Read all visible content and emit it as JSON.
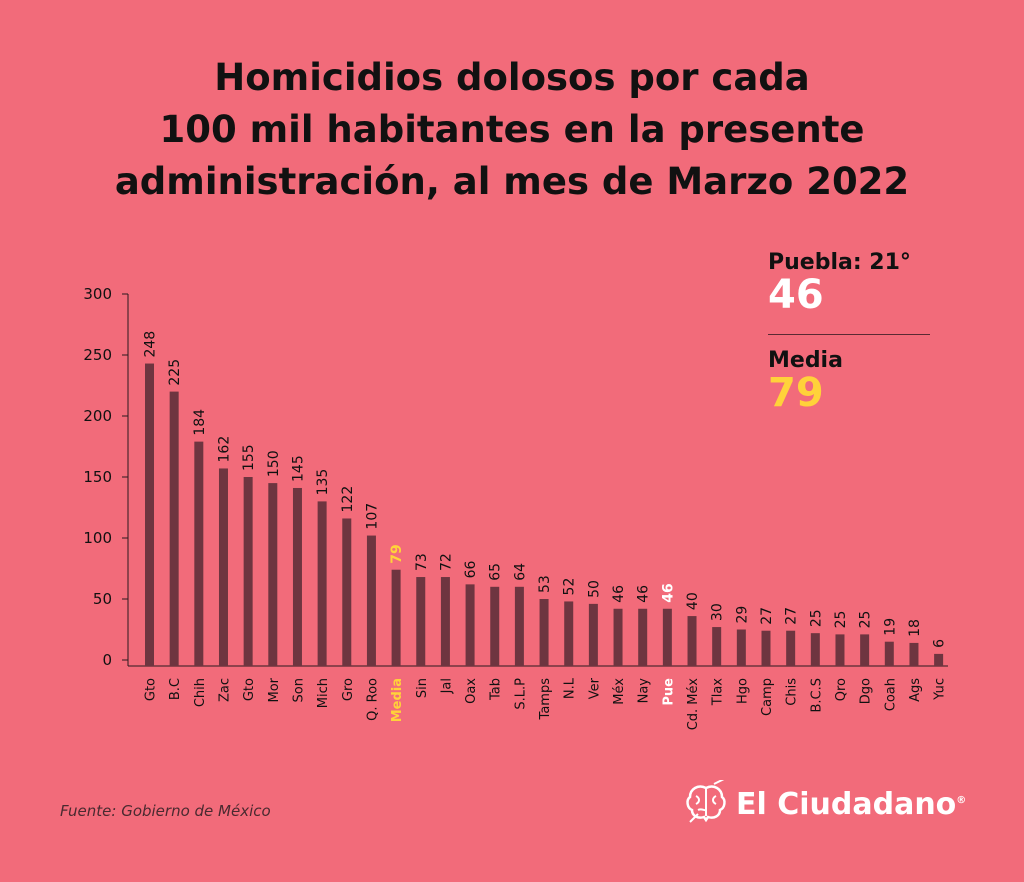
{
  "title_lines": [
    "Homicidios dolosos por cada",
    "100 mil habitantes en la presente",
    "administración, al mes de Marzo 2022"
  ],
  "puebla": {
    "label": "Puebla: 21°",
    "value": "46"
  },
  "media": {
    "label": "Media",
    "value": "79"
  },
  "source": "Fuente: Gobierno de México",
  "brand": {
    "name": "El Ciudadano",
    "registered": "®"
  },
  "colors": {
    "background": "#f26b7a",
    "bar": "#6e3540",
    "highlight_yellow": "#ffd23a",
    "highlight_white": "#ffffff"
  },
  "chart_data": {
    "type": "bar",
    "ylim": [
      0,
      300
    ],
    "yticks": [
      0,
      50,
      100,
      150,
      200,
      250,
      300
    ],
    "categories": [
      "Gto",
      "B.C",
      "Chih",
      "Zac",
      "Gto",
      "Mor",
      "Son",
      "Mich",
      "Gro",
      "Q. Roo",
      "Media",
      "Sin",
      "Jal",
      "Oax",
      "Tab",
      "S.L.P",
      "Tamps",
      "N.L",
      "Ver",
      "Méx",
      "Nay",
      "Pue",
      "Cd. Méx",
      "Tlax",
      "Hgo",
      "Camp",
      "Chis",
      "B.C.S",
      "Qro",
      "Dgo",
      "Coah",
      "Ags",
      "Yuc"
    ],
    "values": [
      248,
      225,
      184,
      162,
      155,
      150,
      145,
      135,
      122,
      107,
      79,
      73,
      72,
      66,
      65,
      64,
      53,
      52,
      50,
      46,
      46,
      46,
      40,
      30,
      29,
      27,
      27,
      25,
      25,
      25,
      19,
      18,
      6
    ],
    "bar_values": [
      243,
      220,
      179,
      157,
      150,
      145,
      141,
      130,
      116,
      102,
      74,
      68,
      68,
      62,
      60,
      60,
      50,
      48,
      46,
      42,
      42,
      42,
      36,
      27,
      25,
      24,
      24,
      22,
      21,
      21,
      15,
      14,
      5
    ],
    "highlight_yellow": [
      "Media"
    ],
    "highlight_white": [
      "Pue"
    ]
  }
}
